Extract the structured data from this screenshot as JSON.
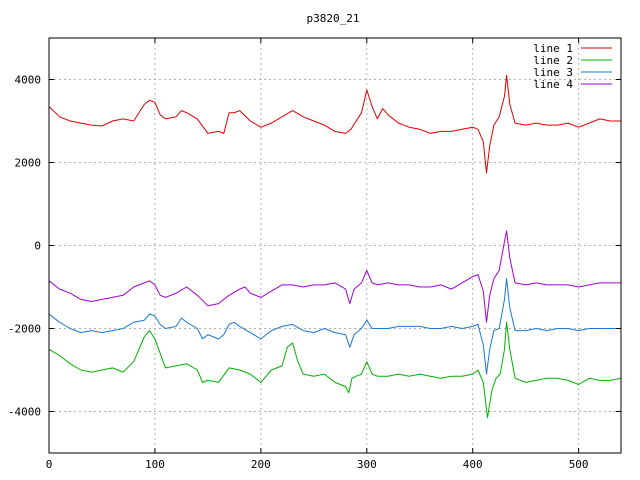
{
  "chart_data": {
    "type": "line",
    "title": "p3820_21",
    "xlabel": "",
    "ylabel": "",
    "xlim": [
      0,
      540
    ],
    "ylim": [
      -5000,
      5000
    ],
    "x_ticks": [
      0,
      100,
      200,
      300,
      400,
      500
    ],
    "y_ticks": [
      -4000,
      -2000,
      0,
      2000,
      4000
    ],
    "grid": true,
    "legend_position": "top-right",
    "series": [
      {
        "name": "line 1",
        "color": "#e00000",
        "points": [
          [
            0,
            3350
          ],
          [
            10,
            3100
          ],
          [
            20,
            3000
          ],
          [
            30,
            2950
          ],
          [
            40,
            2900
          ],
          [
            50,
            2880
          ],
          [
            60,
            3000
          ],
          [
            70,
            3050
          ],
          [
            80,
            3000
          ],
          [
            90,
            3400
          ],
          [
            95,
            3500
          ],
          [
            100,
            3450
          ],
          [
            105,
            3150
          ],
          [
            110,
            3050
          ],
          [
            120,
            3100
          ],
          [
            125,
            3250
          ],
          [
            130,
            3200
          ],
          [
            140,
            3050
          ],
          [
            150,
            2700
          ],
          [
            160,
            2750
          ],
          [
            165,
            2700
          ],
          [
            170,
            3200
          ],
          [
            175,
            3200
          ],
          [
            180,
            3250
          ],
          [
            190,
            3000
          ],
          [
            200,
            2850
          ],
          [
            210,
            2950
          ],
          [
            220,
            3100
          ],
          [
            230,
            3250
          ],
          [
            240,
            3100
          ],
          [
            250,
            3000
          ],
          [
            260,
            2900
          ],
          [
            270,
            2750
          ],
          [
            280,
            2700
          ],
          [
            285,
            2800
          ],
          [
            295,
            3200
          ],
          [
            300,
            3750
          ],
          [
            305,
            3350
          ],
          [
            310,
            3050
          ],
          [
            315,
            3300
          ],
          [
            320,
            3150
          ],
          [
            330,
            2950
          ],
          [
            340,
            2850
          ],
          [
            350,
            2800
          ],
          [
            360,
            2700
          ],
          [
            370,
            2750
          ],
          [
            380,
            2750
          ],
          [
            390,
            2800
          ],
          [
            400,
            2850
          ],
          [
            405,
            2800
          ],
          [
            410,
            2500
          ],
          [
            413,
            1750
          ],
          [
            416,
            2400
          ],
          [
            420,
            2900
          ],
          [
            425,
            3100
          ],
          [
            430,
            3600
          ],
          [
            432,
            4100
          ],
          [
            435,
            3400
          ],
          [
            440,
            2950
          ],
          [
            450,
            2900
          ],
          [
            460,
            2950
          ],
          [
            470,
            2900
          ],
          [
            480,
            2900
          ],
          [
            490,
            2950
          ],
          [
            500,
            2850
          ],
          [
            510,
            2950
          ],
          [
            520,
            3050
          ],
          [
            530,
            3000
          ],
          [
            540,
            3000
          ]
        ]
      },
      {
        "name": "line 2",
        "color": "#00b000",
        "points": [
          [
            0,
            -2500
          ],
          [
            10,
            -2650
          ],
          [
            20,
            -2850
          ],
          [
            30,
            -3000
          ],
          [
            40,
            -3050
          ],
          [
            50,
            -3000
          ],
          [
            60,
            -2950
          ],
          [
            70,
            -3050
          ],
          [
            80,
            -2800
          ],
          [
            90,
            -2200
          ],
          [
            95,
            -2050
          ],
          [
            100,
            -2250
          ],
          [
            105,
            -2600
          ],
          [
            110,
            -2950
          ],
          [
            120,
            -2900
          ],
          [
            130,
            -2850
          ],
          [
            140,
            -3000
          ],
          [
            145,
            -3300
          ],
          [
            150,
            -3250
          ],
          [
            160,
            -3300
          ],
          [
            170,
            -2950
          ],
          [
            180,
            -3000
          ],
          [
            190,
            -3100
          ],
          [
            200,
            -3300
          ],
          [
            210,
            -3000
          ],
          [
            220,
            -2900
          ],
          [
            225,
            -2450
          ],
          [
            230,
            -2350
          ],
          [
            235,
            -2800
          ],
          [
            240,
            -3100
          ],
          [
            250,
            -3150
          ],
          [
            260,
            -3100
          ],
          [
            270,
            -3300
          ],
          [
            280,
            -3400
          ],
          [
            283,
            -3550
          ],
          [
            286,
            -3200
          ],
          [
            290,
            -3150
          ],
          [
            295,
            -3100
          ],
          [
            300,
            -2800
          ],
          [
            305,
            -3100
          ],
          [
            310,
            -3150
          ],
          [
            320,
            -3150
          ],
          [
            330,
            -3100
          ],
          [
            340,
            -3150
          ],
          [
            350,
            -3100
          ],
          [
            360,
            -3150
          ],
          [
            370,
            -3200
          ],
          [
            380,
            -3150
          ],
          [
            390,
            -3150
          ],
          [
            400,
            -3100
          ],
          [
            405,
            -3000
          ],
          [
            410,
            -3300
          ],
          [
            414,
            -4150
          ],
          [
            418,
            -3500
          ],
          [
            422,
            -3200
          ],
          [
            426,
            -3100
          ],
          [
            430,
            -2500
          ],
          [
            432,
            -1850
          ],
          [
            435,
            -2500
          ],
          [
            440,
            -3200
          ],
          [
            450,
            -3300
          ],
          [
            460,
            -3250
          ],
          [
            470,
            -3200
          ],
          [
            480,
            -3200
          ],
          [
            490,
            -3250
          ],
          [
            500,
            -3350
          ],
          [
            510,
            -3200
          ],
          [
            520,
            -3250
          ],
          [
            530,
            -3250
          ],
          [
            540,
            -3200
          ]
        ]
      },
      {
        "name": "line 3",
        "color": "#1a78d8",
        "points": [
          [
            0,
            -1650
          ],
          [
            10,
            -1850
          ],
          [
            20,
            -2000
          ],
          [
            30,
            -2100
          ],
          [
            40,
            -2050
          ],
          [
            50,
            -2100
          ],
          [
            60,
            -2050
          ],
          [
            70,
            -2000
          ],
          [
            80,
            -1850
          ],
          [
            90,
            -1800
          ],
          [
            95,
            -1650
          ],
          [
            100,
            -1700
          ],
          [
            105,
            -1900
          ],
          [
            110,
            -2000
          ],
          [
            120,
            -1950
          ],
          [
            125,
            -1750
          ],
          [
            130,
            -1850
          ],
          [
            140,
            -2000
          ],
          [
            145,
            -2250
          ],
          [
            150,
            -2150
          ],
          [
            160,
            -2250
          ],
          [
            165,
            -2150
          ],
          [
            170,
            -1900
          ],
          [
            175,
            -1850
          ],
          [
            180,
            -1950
          ],
          [
            190,
            -2100
          ],
          [
            200,
            -2250
          ],
          [
            210,
            -2050
          ],
          [
            220,
            -1950
          ],
          [
            230,
            -1900
          ],
          [
            240,
            -2050
          ],
          [
            250,
            -2100
          ],
          [
            260,
            -2000
          ],
          [
            270,
            -2100
          ],
          [
            280,
            -2150
          ],
          [
            284,
            -2450
          ],
          [
            288,
            -2150
          ],
          [
            295,
            -2000
          ],
          [
            300,
            -1800
          ],
          [
            305,
            -2000
          ],
          [
            310,
            -2000
          ],
          [
            320,
            -2000
          ],
          [
            330,
            -1950
          ],
          [
            340,
            -1950
          ],
          [
            350,
            -1950
          ],
          [
            360,
            -2000
          ],
          [
            370,
            -2000
          ],
          [
            380,
            -1950
          ],
          [
            390,
            -2000
          ],
          [
            400,
            -1950
          ],
          [
            405,
            -1900
          ],
          [
            410,
            -2400
          ],
          [
            413,
            -3100
          ],
          [
            416,
            -2500
          ],
          [
            420,
            -2050
          ],
          [
            425,
            -2000
          ],
          [
            430,
            -1300
          ],
          [
            432,
            -800
          ],
          [
            435,
            -1500
          ],
          [
            440,
            -2050
          ],
          [
            450,
            -2050
          ],
          [
            460,
            -2000
          ],
          [
            470,
            -2050
          ],
          [
            480,
            -2000
          ],
          [
            490,
            -2000
          ],
          [
            500,
            -2050
          ],
          [
            510,
            -2000
          ],
          [
            520,
            -2000
          ],
          [
            530,
            -2000
          ],
          [
            540,
            -2000
          ]
        ]
      },
      {
        "name": "line 4",
        "color": "#a000d0",
        "points": [
          [
            0,
            -850
          ],
          [
            10,
            -1050
          ],
          [
            20,
            -1150
          ],
          [
            30,
            -1300
          ],
          [
            40,
            -1350
          ],
          [
            50,
            -1300
          ],
          [
            60,
            -1250
          ],
          [
            70,
            -1200
          ],
          [
            80,
            -1000
          ],
          [
            90,
            -900
          ],
          [
            95,
            -850
          ],
          [
            100,
            -950
          ],
          [
            105,
            -1200
          ],
          [
            110,
            -1250
          ],
          [
            120,
            -1150
          ],
          [
            130,
            -1000
          ],
          [
            140,
            -1200
          ],
          [
            150,
            -1450
          ],
          [
            160,
            -1400
          ],
          [
            165,
            -1300
          ],
          [
            170,
            -1200
          ],
          [
            180,
            -1050
          ],
          [
            185,
            -1000
          ],
          [
            190,
            -1150
          ],
          [
            200,
            -1250
          ],
          [
            210,
            -1100
          ],
          [
            220,
            -950
          ],
          [
            230,
            -950
          ],
          [
            240,
            -1000
          ],
          [
            250,
            -950
          ],
          [
            260,
            -950
          ],
          [
            270,
            -900
          ],
          [
            280,
            -1050
          ],
          [
            284,
            -1400
          ],
          [
            288,
            -1050
          ],
          [
            295,
            -900
          ],
          [
            300,
            -600
          ],
          [
            305,
            -900
          ],
          [
            310,
            -950
          ],
          [
            320,
            -900
          ],
          [
            330,
            -950
          ],
          [
            340,
            -950
          ],
          [
            350,
            -1000
          ],
          [
            360,
            -1000
          ],
          [
            370,
            -950
          ],
          [
            380,
            -1050
          ],
          [
            390,
            -900
          ],
          [
            400,
            -750
          ],
          [
            405,
            -700
          ],
          [
            410,
            -1100
          ],
          [
            413,
            -1850
          ],
          [
            416,
            -1200
          ],
          [
            420,
            -800
          ],
          [
            425,
            -600
          ],
          [
            430,
            100
          ],
          [
            432,
            350
          ],
          [
            435,
            -300
          ],
          [
            440,
            -900
          ],
          [
            450,
            -950
          ],
          [
            460,
            -900
          ],
          [
            470,
            -950
          ],
          [
            480,
            -950
          ],
          [
            490,
            -950
          ],
          [
            500,
            -1000
          ],
          [
            510,
            -950
          ],
          [
            520,
            -900
          ],
          [
            530,
            -900
          ],
          [
            540,
            -900
          ]
        ]
      }
    ]
  }
}
